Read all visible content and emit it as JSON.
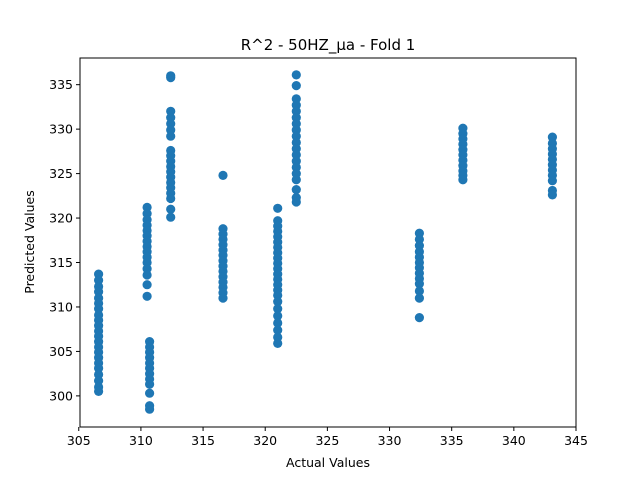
{
  "chart_data": {
    "type": "scatter",
    "title": "R^2 - 50HZ_µa - Fold 1",
    "xlabel": "Actual Values",
    "ylabel": "Predicted Values",
    "xlim": [
      305.1,
      345.0
    ],
    "ylim": [
      296.5,
      338.0
    ],
    "xticks": [
      305,
      310,
      315,
      320,
      325,
      330,
      335,
      340,
      345
    ],
    "yticks": [
      300,
      305,
      310,
      315,
      320,
      325,
      330,
      335
    ],
    "grid": false,
    "marker_color": "#1f77b4",
    "series": [
      {
        "points": [
          [
            306.6,
            313.7
          ],
          [
            306.6,
            313.0
          ],
          [
            306.6,
            312.3
          ],
          [
            306.6,
            311.7
          ],
          [
            306.6,
            311.0
          ],
          [
            306.6,
            310.4
          ],
          [
            306.6,
            309.8
          ],
          [
            306.6,
            309.1
          ],
          [
            306.6,
            308.5
          ],
          [
            306.6,
            307.9
          ],
          [
            306.6,
            307.3
          ],
          [
            306.6,
            306.7
          ],
          [
            306.6,
            306.1
          ],
          [
            306.6,
            305.5
          ],
          [
            306.6,
            304.9
          ],
          [
            306.6,
            304.3
          ],
          [
            306.6,
            303.7
          ],
          [
            306.6,
            303.1
          ],
          [
            306.6,
            302.4
          ],
          [
            306.6,
            301.7
          ],
          [
            306.6,
            301.0
          ],
          [
            306.6,
            300.5
          ],
          [
            310.5,
            321.2
          ],
          [
            310.5,
            320.5
          ],
          [
            310.5,
            319.8
          ],
          [
            310.5,
            319.2
          ],
          [
            310.5,
            318.6
          ],
          [
            310.5,
            318.0
          ],
          [
            310.5,
            317.4
          ],
          [
            310.5,
            316.8
          ],
          [
            310.5,
            316.2
          ],
          [
            310.5,
            315.6
          ],
          [
            310.5,
            315.0
          ],
          [
            310.5,
            314.3
          ],
          [
            310.5,
            313.6
          ],
          [
            310.5,
            312.5
          ],
          [
            310.5,
            311.2
          ],
          [
            310.7,
            306.1
          ],
          [
            310.7,
            305.5
          ],
          [
            310.7,
            304.9
          ],
          [
            310.7,
            304.3
          ],
          [
            310.7,
            303.7
          ],
          [
            310.7,
            303.1
          ],
          [
            310.7,
            302.5
          ],
          [
            310.7,
            301.9
          ],
          [
            310.7,
            301.3
          ],
          [
            310.7,
            300.3
          ],
          [
            310.7,
            298.9
          ],
          [
            310.7,
            298.5
          ],
          [
            312.4,
            336.0
          ],
          [
            312.4,
            335.8
          ],
          [
            312.4,
            332.0
          ],
          [
            312.4,
            331.3
          ],
          [
            312.4,
            330.6
          ],
          [
            312.4,
            329.9
          ],
          [
            312.4,
            329.2
          ],
          [
            312.4,
            327.6
          ],
          [
            312.4,
            327.0
          ],
          [
            312.4,
            326.4
          ],
          [
            312.4,
            325.8
          ],
          [
            312.4,
            325.2
          ],
          [
            312.4,
            324.6
          ],
          [
            312.4,
            324.0
          ],
          [
            312.4,
            323.4
          ],
          [
            312.4,
            322.8
          ],
          [
            312.4,
            322.2
          ],
          [
            312.4,
            321.0
          ],
          [
            312.4,
            320.1
          ],
          [
            316.6,
            324.8
          ],
          [
            316.6,
            318.8
          ],
          [
            316.6,
            318.2
          ],
          [
            316.6,
            317.6
          ],
          [
            316.6,
            317.0
          ],
          [
            316.6,
            316.4
          ],
          [
            316.6,
            315.8
          ],
          [
            316.6,
            315.2
          ],
          [
            316.6,
            314.6
          ],
          [
            316.6,
            314.0
          ],
          [
            316.6,
            313.4
          ],
          [
            316.6,
            312.8
          ],
          [
            316.6,
            312.2
          ],
          [
            316.6,
            311.6
          ],
          [
            316.6,
            311.0
          ],
          [
            321.0,
            321.1
          ],
          [
            321.0,
            319.7
          ],
          [
            321.0,
            319.1
          ],
          [
            321.0,
            318.5
          ],
          [
            321.0,
            317.9
          ],
          [
            321.0,
            317.3
          ],
          [
            321.0,
            316.7
          ],
          [
            321.0,
            316.1
          ],
          [
            321.0,
            315.5
          ],
          [
            321.0,
            314.9
          ],
          [
            321.0,
            314.3
          ],
          [
            321.0,
            313.7
          ],
          [
            321.0,
            313.1
          ],
          [
            321.0,
            312.5
          ],
          [
            321.0,
            311.9
          ],
          [
            321.0,
            311.3
          ],
          [
            321.0,
            310.6
          ],
          [
            321.0,
            309.8
          ],
          [
            321.0,
            309.0
          ],
          [
            321.0,
            308.2
          ],
          [
            321.0,
            307.4
          ],
          [
            321.0,
            306.6
          ],
          [
            321.0,
            305.9
          ],
          [
            322.5,
            336.1
          ],
          [
            322.5,
            334.9
          ],
          [
            322.5,
            333.4
          ],
          [
            322.5,
            332.7
          ],
          [
            322.5,
            332.0
          ],
          [
            322.5,
            331.3
          ],
          [
            322.5,
            330.6
          ],
          [
            322.5,
            329.9
          ],
          [
            322.5,
            329.2
          ],
          [
            322.5,
            328.5
          ],
          [
            322.5,
            327.8
          ],
          [
            322.5,
            327.1
          ],
          [
            322.5,
            326.4
          ],
          [
            322.5,
            325.7
          ],
          [
            322.5,
            325.0
          ],
          [
            322.5,
            324.3
          ],
          [
            322.5,
            323.2
          ],
          [
            322.5,
            322.3
          ],
          [
            322.5,
            321.8
          ],
          [
            332.4,
            318.3
          ],
          [
            332.4,
            317.6
          ],
          [
            332.4,
            316.9
          ],
          [
            332.4,
            316.2
          ],
          [
            332.4,
            315.6
          ],
          [
            332.4,
            315.0
          ],
          [
            332.4,
            314.4
          ],
          [
            332.4,
            313.8
          ],
          [
            332.4,
            313.2
          ],
          [
            332.4,
            312.6
          ],
          [
            332.4,
            311.8
          ],
          [
            332.4,
            311.0
          ],
          [
            332.4,
            308.8
          ],
          [
            335.9,
            330.1
          ],
          [
            335.9,
            329.5
          ],
          [
            335.9,
            328.9
          ],
          [
            335.9,
            328.3
          ],
          [
            335.9,
            327.7
          ],
          [
            335.9,
            327.1
          ],
          [
            335.9,
            326.5
          ],
          [
            335.9,
            325.9
          ],
          [
            335.9,
            325.3
          ],
          [
            335.9,
            324.8
          ],
          [
            335.9,
            324.3
          ],
          [
            343.1,
            329.1
          ],
          [
            343.1,
            328.4
          ],
          [
            343.1,
            327.8
          ],
          [
            343.1,
            327.2
          ],
          [
            343.1,
            326.6
          ],
          [
            343.1,
            326.0
          ],
          [
            343.1,
            325.4
          ],
          [
            343.1,
            324.8
          ],
          [
            343.1,
            324.2
          ],
          [
            343.1,
            323.1
          ],
          [
            343.1,
            322.6
          ]
        ]
      }
    ]
  }
}
